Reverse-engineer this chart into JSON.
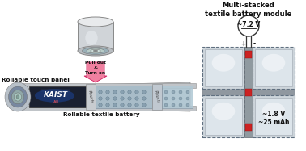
{
  "bg_color": "#ffffff",
  "title_text": "Multi-stacked\ntextile battery module",
  "voltage_circle_text": "~7.2 V",
  "voltage_1_8": "~1.8 V",
  "capacity_text": "~25 mAh",
  "pull_out_text": "Pull out\n&\nTurn on",
  "rollable_touch_text": "Rollable touch panel",
  "rollable_battery_text": "Rollable textile battery",
  "pouch_text": "Pouch",
  "battery_light": "#cdd5db",
  "battery_highlight": "#dde5eb",
  "battery_gray": "#a8b0b8",
  "connector_color": "#9098a0",
  "red_strip_color": "#cc2222",
  "arrow_color": "#e0306a",
  "display_dark": "#1a2030",
  "kaist_color": "#ffffff",
  "dashed_color": "#607080",
  "cyl_body": "#d0d4d8",
  "cyl_top": "#e8eaec",
  "cyl_bottom": "#b8bcc0",
  "roll_outer": "#c0c8d0",
  "roll_mid": "#889aaa",
  "roll_core": "#a0b8b0",
  "scroll_strip": "#c0c4c8",
  "textile1": "#a8bcc8",
  "textile2": "#b8ccd8",
  "dot_fill": "#8090a0",
  "arrow_fill": "#f080a0",
  "arrow_dark": "#d02060"
}
